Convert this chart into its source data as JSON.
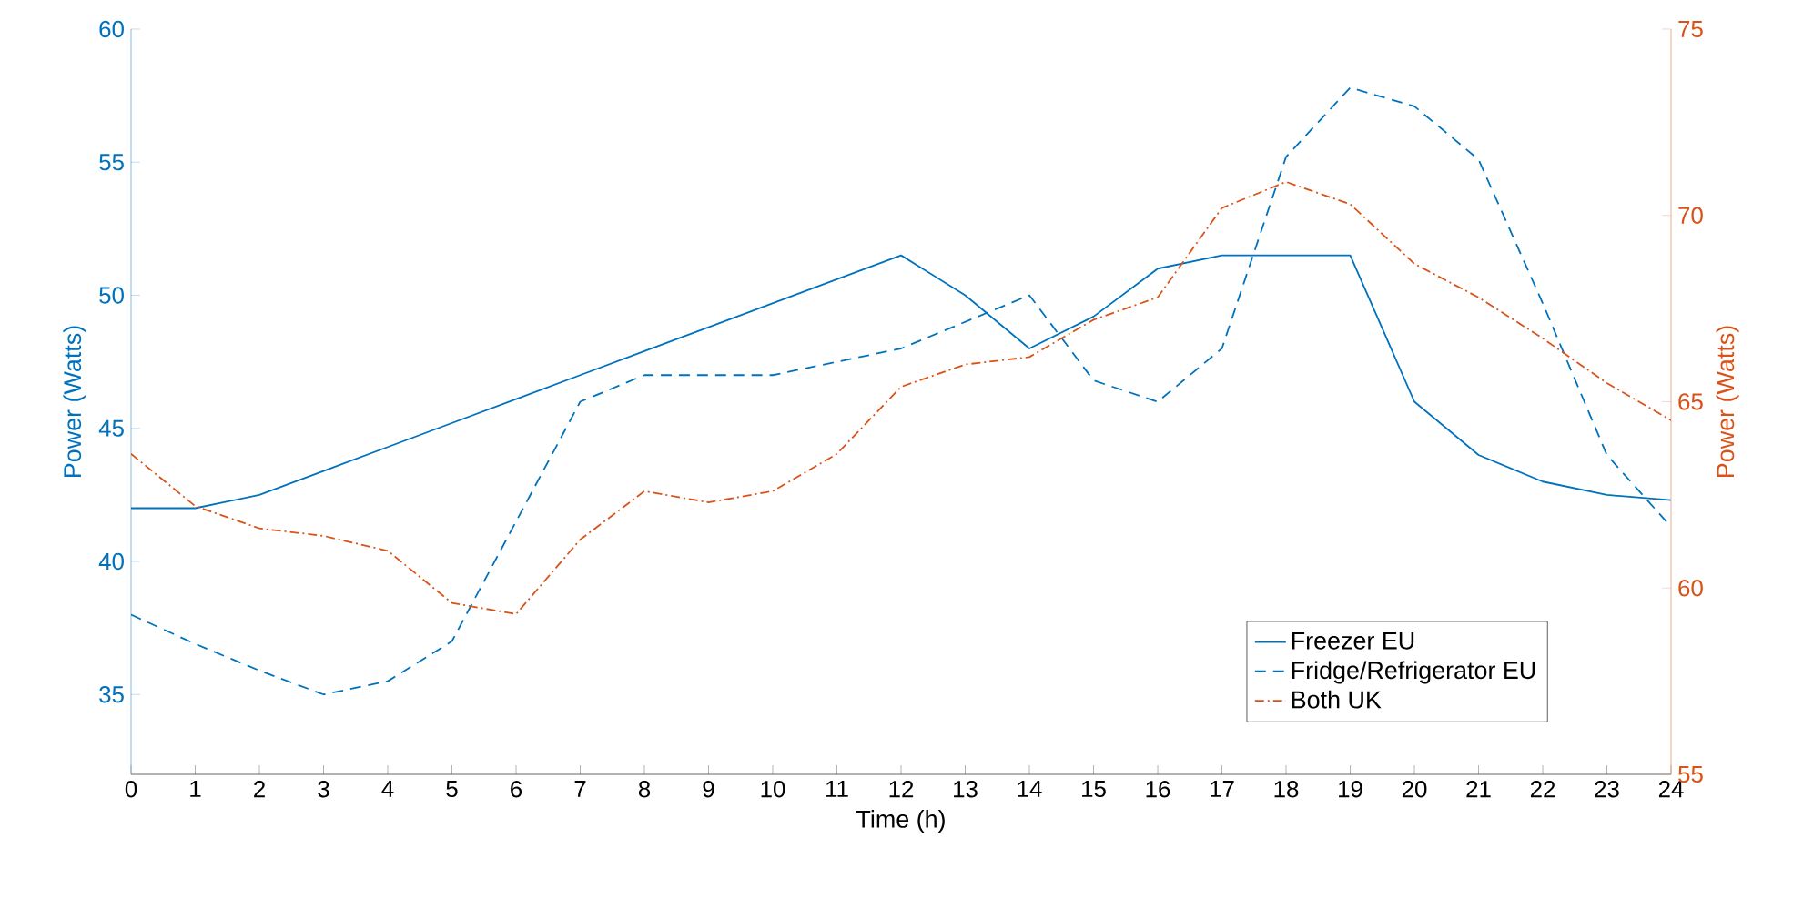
{
  "chart_data": {
    "type": "line",
    "xlabel": "Time (h)",
    "ylabel": "Power (Watts)",
    "y2label": "Power (Watts)",
    "x": [
      0,
      1,
      2,
      3,
      4,
      5,
      6,
      7,
      8,
      9,
      10,
      11,
      12,
      13,
      14,
      15,
      16,
      17,
      18,
      19,
      20,
      21,
      22,
      23,
      24
    ],
    "xlim": [
      0,
      24
    ],
    "xticks": [
      0,
      1,
      2,
      3,
      4,
      5,
      6,
      7,
      8,
      9,
      10,
      11,
      12,
      13,
      14,
      15,
      16,
      17,
      18,
      19,
      20,
      21,
      22,
      23,
      24
    ],
    "ylim": [
      32,
      60
    ],
    "yticks": [
      35,
      40,
      45,
      50,
      55,
      60
    ],
    "y2lim": [
      55,
      75
    ],
    "y2ticks": [
      55,
      60,
      65,
      70,
      75
    ],
    "legend": "bottom right",
    "grid": false,
    "marker": "none",
    "series": [
      {
        "name": "Freezer EU",
        "color": "#0072bd",
        "line_style": "solid",
        "values": [
          42,
          42,
          42.5,
          43.4,
          44.3,
          45.2,
          46.1,
          47,
          47.9,
          48.8,
          49.7,
          50.6,
          51.5,
          50,
          48,
          49.2,
          51,
          51.5,
          51.5,
          51.5,
          46,
          44,
          43,
          42.5,
          42.3
        ]
      },
      {
        "name": "Fridge/Refrigerator EU",
        "color": "#0072bd",
        "line_style": "dashed",
        "values": [
          38,
          36.9,
          35.9,
          35,
          35.5,
          37,
          41.5,
          46,
          47,
          47,
          47,
          47.5,
          48,
          49,
          50,
          46.8,
          46,
          48,
          55.2,
          57.8,
          57.1,
          55.1,
          49.7,
          44,
          41.3
        ]
      },
      {
        "name": "Both UK",
        "color": "#d95319",
        "line_style": "dashdot",
        "axis": "y2",
        "values": [
          63.6,
          62.2,
          61.6,
          61.4,
          61,
          59.6,
          59.3,
          61.3,
          62.6,
          62.3,
          62.6,
          63.6,
          65.4,
          66,
          66.2,
          67.2,
          67.8,
          70.2,
          70.9,
          70.3,
          68.7,
          67.8,
          66.7,
          65.5,
          64.5
        ]
      }
    ]
  }
}
